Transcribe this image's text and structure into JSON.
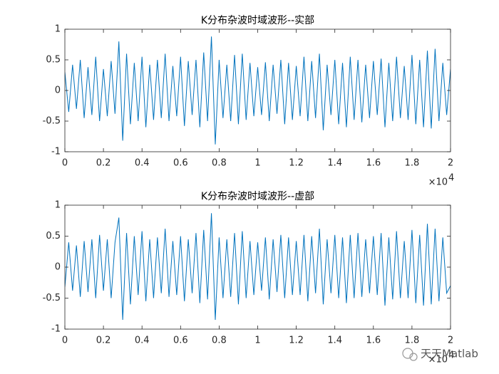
{
  "chart_data": [
    {
      "type": "line",
      "title": "K分布杂波时域波形--实部",
      "x": [
        0,
        200,
        400,
        600,
        800,
        1000,
        1200,
        1400,
        1600,
        1800,
        2000,
        2200,
        2400,
        2600,
        2800,
        3000,
        3200,
        3400,
        3600,
        3800,
        4000,
        4200,
        4400,
        4600,
        4800,
        5000,
        5200,
        5400,
        5600,
        5800,
        6000,
        6200,
        6400,
        6600,
        6800,
        7000,
        7200,
        7400,
        7600,
        7800,
        8000,
        8200,
        8400,
        8600,
        8800,
        9000,
        9200,
        9400,
        9600,
        9800,
        10000,
        10200,
        10400,
        10600,
        10800,
        11000,
        11200,
        11400,
        11600,
        11800,
        12000,
        12200,
        12400,
        12600,
        12800,
        13000,
        13200,
        13400,
        13600,
        13800,
        14000,
        14200,
        14400,
        14600,
        14800,
        15000,
        15200,
        15400,
        15600,
        15800,
        16000,
        16200,
        16400,
        16600,
        16800,
        17000,
        17200,
        17400,
        17600,
        17800,
        18000,
        18200,
        18400,
        18600,
        18800,
        19000,
        19200,
        19400,
        19600,
        19800,
        20000
      ],
      "series": [
        {
          "color": "#0072BD",
          "values": [
            0.3,
            -0.35,
            0.42,
            -0.3,
            0.5,
            -0.45,
            0.38,
            -0.4,
            0.55,
            -0.5,
            0.35,
            -0.42,
            0.48,
            -0.38,
            0.8,
            -0.82,
            0.6,
            -0.55,
            0.45,
            -0.5,
            0.55,
            -0.6,
            0.42,
            -0.48,
            0.5,
            -0.45,
            0.6,
            -0.5,
            0.4,
            -0.42,
            0.55,
            -0.58,
            0.48,
            -0.4,
            0.5,
            -0.6,
            0.62,
            -0.5,
            0.88,
            -0.88,
            0.5,
            -0.45,
            0.42,
            -0.5,
            0.58,
            -0.55,
            0.6,
            -0.48,
            0.45,
            -0.42,
            0.38,
            -0.4,
            0.46,
            -0.5,
            0.42,
            -0.38,
            0.5,
            -0.55,
            0.45,
            -0.48,
            0.4,
            -0.42,
            0.55,
            -0.5,
            0.48,
            -0.45,
            0.6,
            -0.65,
            0.42,
            -0.4,
            0.5,
            -0.55,
            0.45,
            -0.6,
            0.55,
            -0.48,
            0.5,
            -0.52,
            0.42,
            -0.45,
            0.48,
            -0.4,
            0.52,
            -0.6,
            0.45,
            -0.5,
            0.55,
            -0.45,
            0.4,
            -0.48,
            0.58,
            -0.55,
            0.5,
            -0.6,
            0.65,
            -0.62,
            0.68,
            -0.5,
            0.45,
            -0.4,
            0.35
          ]
        }
      ],
      "xlim": [
        0,
        20000
      ],
      "ylim": [
        -1,
        1
      ],
      "xticks": [
        0,
        {
          "value": 2000,
          "label": "0.2"
        },
        {
          "value": 4000,
          "label": "0.4"
        },
        {
          "value": 6000,
          "label": "0.6"
        },
        {
          "value": 8000,
          "label": "0.8"
        },
        {
          "value": 10000,
          "label": "1"
        },
        {
          "value": 12000,
          "label": "1.2"
        },
        {
          "value": 14000,
          "label": "1.4"
        },
        {
          "value": 16000,
          "label": "1.6"
        },
        {
          "value": 18000,
          "label": "1.8"
        },
        {
          "value": 20000,
          "label": "2"
        }
      ],
      "yticks": [
        -1,
        -0.5,
        0,
        0.5,
        1
      ],
      "x_exponent_base": "×10",
      "x_exponent_power": "4"
    },
    {
      "type": "line",
      "title": "K分布杂波时域波形--虚部",
      "x": [
        0,
        200,
        400,
        600,
        800,
        1000,
        1200,
        1400,
        1600,
        1800,
        2000,
        2200,
        2400,
        2600,
        2800,
        3000,
        3200,
        3400,
        3600,
        3800,
        4000,
        4200,
        4400,
        4600,
        4800,
        5000,
        5200,
        5400,
        5600,
        5800,
        6000,
        6200,
        6400,
        6600,
        6800,
        7000,
        7200,
        7400,
        7600,
        7800,
        8000,
        8200,
        8400,
        8600,
        8800,
        9000,
        9200,
        9400,
        9600,
        9800,
        10000,
        10200,
        10400,
        10600,
        10800,
        11000,
        11200,
        11400,
        11600,
        11800,
        12000,
        12200,
        12400,
        12600,
        12800,
        13000,
        13200,
        13400,
        13600,
        13800,
        14000,
        14200,
        14400,
        14600,
        14800,
        15000,
        15200,
        15400,
        15600,
        15800,
        16000,
        16200,
        16400,
        16600,
        16800,
        17000,
        17200,
        17400,
        17600,
        17800,
        18000,
        18200,
        18400,
        18600,
        18800,
        19000,
        19200,
        19400,
        19600,
        19800,
        20000
      ],
      "series": [
        {
          "color": "#0072BD",
          "values": [
            -0.32,
            0.4,
            -0.38,
            0.35,
            -0.48,
            0.42,
            -0.4,
            0.45,
            -0.5,
            0.52,
            -0.38,
            0.45,
            -0.5,
            0.4,
            0.8,
            -0.85,
            0.55,
            -0.6,
            0.5,
            -0.45,
            0.58,
            -0.55,
            0.45,
            -0.5,
            0.48,
            -0.42,
            0.62,
            -0.48,
            0.42,
            -0.45,
            0.5,
            -0.55,
            0.45,
            -0.42,
            0.55,
            -0.58,
            0.6,
            -0.52,
            0.87,
            -0.85,
            0.48,
            -0.5,
            0.45,
            -0.48,
            0.55,
            -0.6,
            0.58,
            -0.5,
            0.42,
            -0.45,
            0.4,
            -0.38,
            0.48,
            -0.52,
            0.45,
            -0.4,
            0.52,
            -0.5,
            0.48,
            -0.45,
            0.42,
            -0.45,
            0.52,
            -0.55,
            0.5,
            -0.42,
            0.62,
            -0.6,
            0.45,
            -0.42,
            0.52,
            -0.5,
            0.48,
            -0.58,
            0.52,
            -0.5,
            0.55,
            -0.48,
            0.45,
            -0.42,
            0.5,
            -0.45,
            0.55,
            -0.62,
            0.48,
            -0.52,
            0.58,
            -0.5,
            0.42,
            -0.5,
            0.6,
            -0.58,
            0.52,
            -0.62,
            0.7,
            -0.6,
            0.62,
            -0.55,
            0.48,
            -0.42,
            -0.3
          ]
        }
      ],
      "xlim": [
        0,
        20000
      ],
      "ylim": [
        -1,
        1
      ],
      "xticks": [
        0,
        {
          "value": 2000,
          "label": "0.2"
        },
        {
          "value": 4000,
          "label": "0.4"
        },
        {
          "value": 6000,
          "label": "0.6"
        },
        {
          "value": 8000,
          "label": "0.8"
        },
        {
          "value": 10000,
          "label": "1"
        },
        {
          "value": 12000,
          "label": "1.2"
        },
        {
          "value": 14000,
          "label": "1.4"
        },
        {
          "value": 16000,
          "label": "1.6"
        },
        {
          "value": 18000,
          "label": "1.8"
        },
        {
          "value": 20000,
          "label": "2"
        }
      ],
      "yticks": [
        -1,
        -0.5,
        0,
        0.5,
        1
      ],
      "x_exponent_base": "×10",
      "x_exponent_power": "4"
    }
  ],
  "watermark": "天天Matlab"
}
